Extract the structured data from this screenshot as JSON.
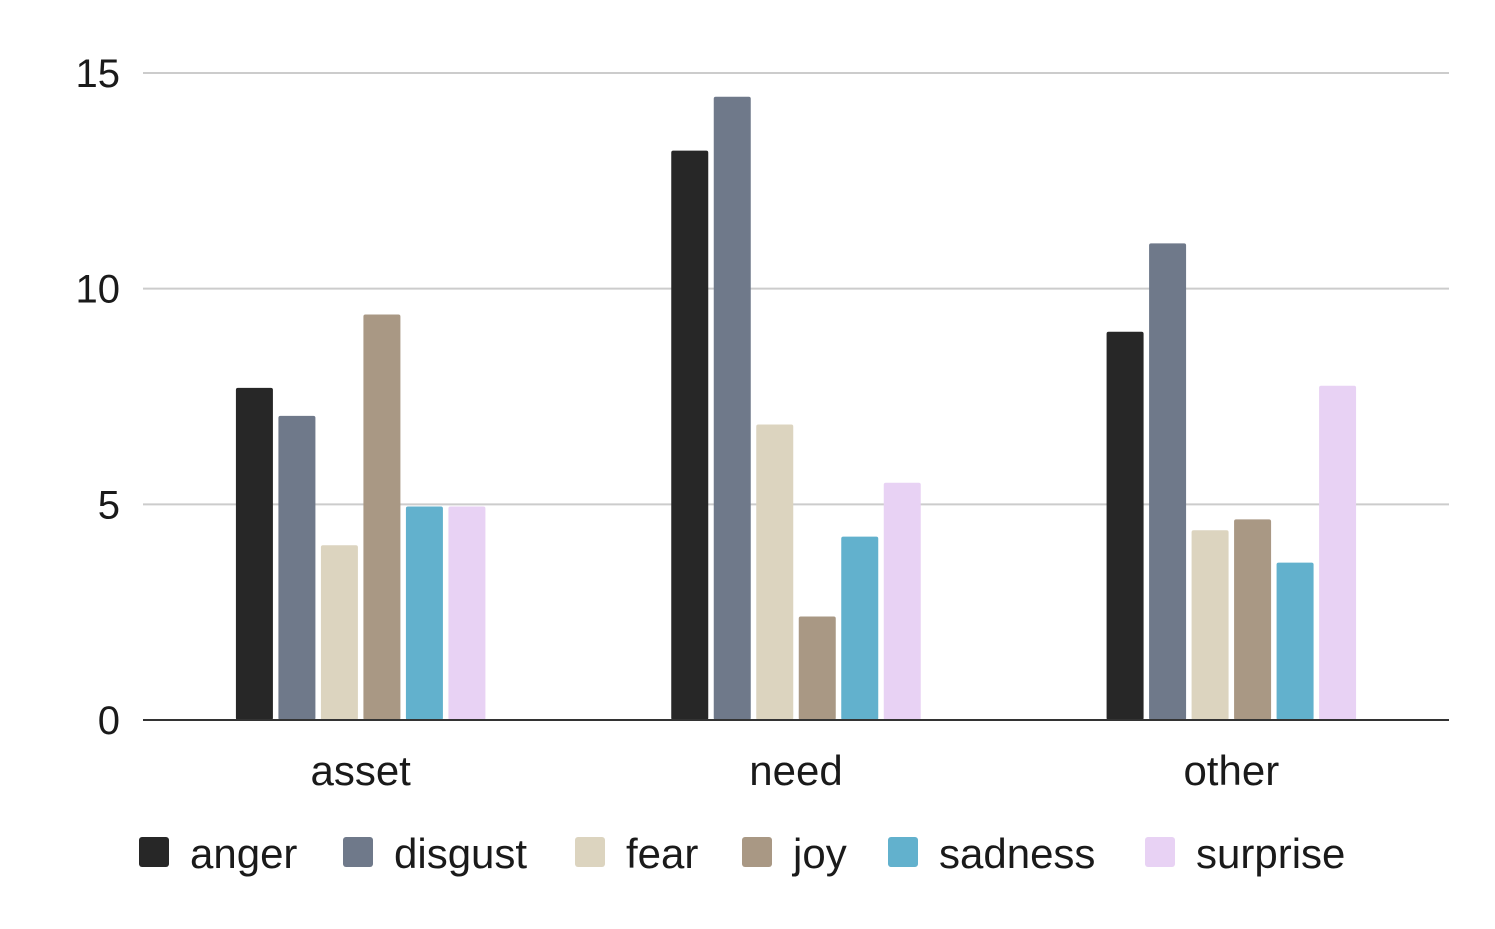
{
  "chart_data": {
    "type": "bar",
    "categories": [
      "asset",
      "need",
      "other"
    ],
    "series": [
      {
        "name": "anger",
        "color": "#272727",
        "values": [
          7.7,
          13.2,
          9.0
        ]
      },
      {
        "name": "disgust",
        "color": "#6F798A",
        "values": [
          7.05,
          14.45,
          11.05
        ]
      },
      {
        "name": "fear",
        "color": "#DCD4BF",
        "values": [
          4.05,
          6.85,
          4.4
        ]
      },
      {
        "name": "joy",
        "color": "#A99884",
        "values": [
          9.4,
          2.4,
          4.65
        ]
      },
      {
        "name": "sadness",
        "color": "#62B1CD",
        "values": [
          4.95,
          4.25,
          3.65
        ]
      },
      {
        "name": "surprise",
        "color": "#E8D2F4",
        "values": [
          4.95,
          5.5,
          7.75
        ]
      }
    ],
    "yticks": [
      "0",
      "5",
      "10",
      "15"
    ],
    "ylim": [
      0,
      15
    ],
    "grid": true,
    "legend_position": "bottom"
  }
}
